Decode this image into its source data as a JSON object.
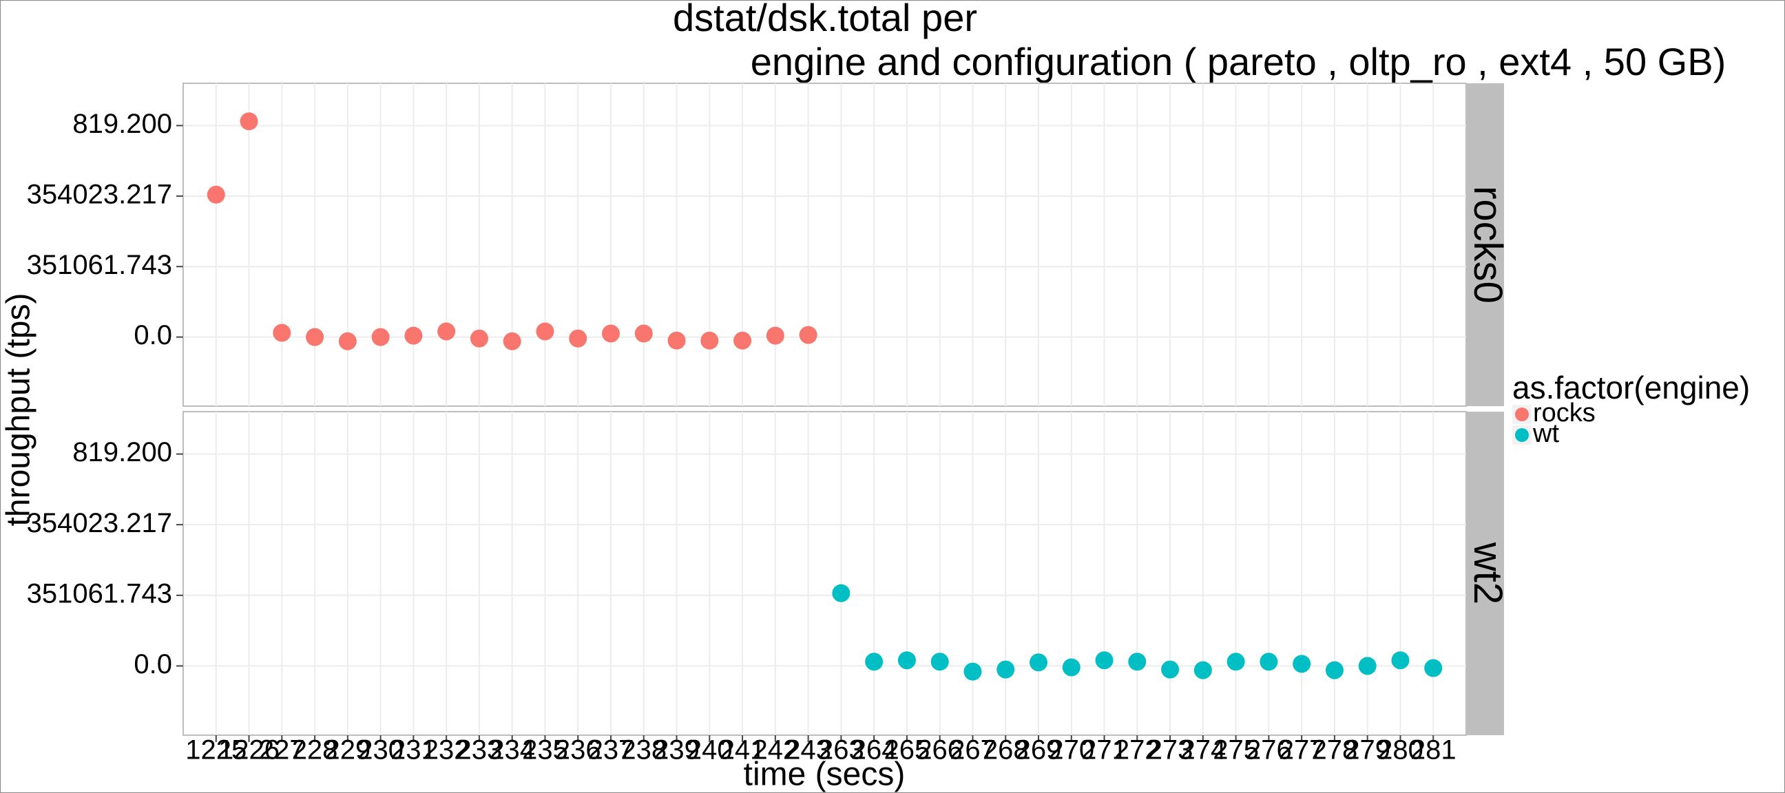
{
  "chart_data": {
    "type": "scatter",
    "title": [
      "dstat/dsk.total per",
      "engine and configuration ( pareto , oltp_ro , ext4 ,  50 GB)"
    ],
    "x_label": "time (secs)",
    "y_label": "throughput (tps)",
    "legend_title": "as.factor(engine)",
    "categories": [
      "1225",
      "1226",
      "227",
      "228",
      "229",
      "230",
      "231",
      "232",
      "233",
      "234",
      "235",
      "236",
      "237",
      "238",
      "239",
      "240",
      "241",
      "242",
      "243",
      "263",
      "264",
      "265",
      "266",
      "267",
      "268",
      "269",
      "270",
      "271",
      "272",
      "273",
      "274",
      "275",
      "276",
      "277",
      "278",
      "279",
      "280",
      "281"
    ],
    "ylim": [
      0.02,
      4.6
    ],
    "yticks": [
      {
        "value": 1,
        "label": "0.0"
      },
      {
        "value": 2,
        "label": "351061.743"
      },
      {
        "value": 3,
        "label": "354023.217"
      },
      {
        "value": 4,
        "label": "819.200"
      }
    ],
    "grid": true,
    "facets": [
      {
        "label": "rocks0",
        "series": [
          {
            "name": "rocks",
            "color": "#F8766D",
            "values": [
              3.02,
              4.06,
              1.06,
              1.0,
              0.94,
              1.0,
              1.02,
              1.08,
              0.98,
              0.94,
              1.08,
              0.98,
              1.05,
              1.05,
              0.95,
              0.95,
              0.95,
              1.02,
              1.03,
              null,
              null,
              null,
              null,
              null,
              null,
              null,
              null,
              null,
              null,
              null,
              null,
              null,
              null,
              null,
              null,
              null,
              null,
              null
            ]
          }
        ]
      },
      {
        "label": "wt2",
        "series": [
          {
            "name": "wt",
            "color": "#00BFC4",
            "values": [
              null,
              null,
              null,
              null,
              null,
              null,
              null,
              null,
              null,
              null,
              null,
              null,
              null,
              null,
              null,
              null,
              null,
              null,
              null,
              2.03,
              1.06,
              1.08,
              1.06,
              0.92,
              0.95,
              1.05,
              0.98,
              1.08,
              1.06,
              0.95,
              0.94,
              1.06,
              1.06,
              1.03,
              0.94,
              1.0,
              1.08,
              0.97
            ]
          }
        ]
      }
    ]
  }
}
